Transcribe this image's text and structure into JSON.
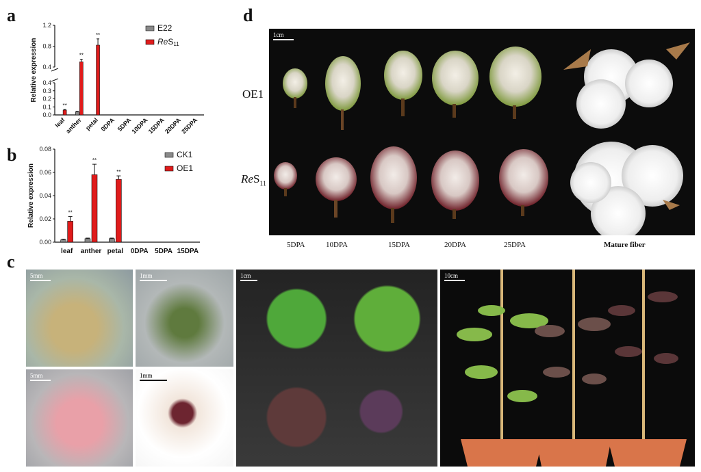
{
  "panels": {
    "a": "a",
    "b": "b",
    "c": "c",
    "d": "d"
  },
  "chart_data": [
    {
      "type": "bar",
      "panel": "a",
      "ylabel": "Relative expression",
      "categories": [
        "leaf",
        "anther",
        "petal",
        "0DPA",
        "5DPA",
        "10DPA",
        "15DPA",
        "20DPA",
        "25DPA"
      ],
      "y_break": [
        0.4,
        0.4
      ],
      "yticks_lower": [
        "0.0",
        "0.1",
        "0.2",
        "0.3",
        "0.4"
      ],
      "yticks_upper": [
        "0.4",
        "0.8",
        "1.2"
      ],
      "ylim": [
        0,
        1.2
      ],
      "series": [
        {
          "name": "E22",
          "color": "#8a8a8a",
          "values": [
            0.0,
            0.04,
            0.0,
            0,
            0,
            0,
            0,
            0,
            0
          ],
          "errors": [
            0,
            0.005,
            0,
            0,
            0,
            0,
            0,
            0,
            0
          ]
        },
        {
          "name": "ReS11",
          "color": "#e01b1b",
          "values": [
            0.06,
            0.5,
            0.82,
            0,
            0,
            0,
            0,
            0,
            0
          ],
          "errors": [
            0.008,
            0.05,
            0.12,
            0,
            0,
            0,
            0,
            0,
            0
          ]
        }
      ],
      "legend": [
        {
          "prefix": "",
          "italic": "",
          "main": "E22",
          "sub": ""
        },
        {
          "prefix": "",
          "italic": "Re",
          "main": "S",
          "sub": "11"
        }
      ],
      "annotations": [
        "**",
        "**",
        "**"
      ],
      "legend_placement": "top-right"
    },
    {
      "type": "bar",
      "panel": "b",
      "ylabel": "Relative expression",
      "categories": [
        "leaf",
        "anther",
        "petal",
        "0DPA",
        "5DPA",
        "15DPA"
      ],
      "yticks": [
        "0.00",
        "0.02",
        "0.04",
        "0.06",
        "0.08"
      ],
      "ylim": [
        0,
        0.08
      ],
      "series": [
        {
          "name": "CK1",
          "color": "#8a8a8a",
          "values": [
            0.002,
            0.003,
            0.003,
            0,
            0,
            0
          ],
          "errors": [
            0.0005,
            0.0005,
            0.0005,
            0,
            0,
            0
          ]
        },
        {
          "name": "OE1",
          "color": "#e01b1b",
          "values": [
            0.018,
            0.058,
            0.054,
            0,
            0,
            0
          ],
          "errors": [
            0.004,
            0.009,
            0.003,
            0,
            0,
            0
          ]
        }
      ],
      "annotations": [
        "**",
        "**",
        "**"
      ],
      "legend_placement": "top-right"
    }
  ],
  "panel_c": {
    "scales": [
      "5mm",
      "1mm",
      "5mm",
      "1mm",
      "1cm",
      "10cm"
    ]
  },
  "panel_d": {
    "scale": "1cm",
    "row_oe": "OE1",
    "row_res_italic": "Re",
    "row_res_main": "S",
    "row_res_sub": "11",
    "stages": [
      "5DPA",
      "10DPA",
      "15DPA",
      "20DPA",
      "25DPA",
      "Mature fiber"
    ]
  }
}
